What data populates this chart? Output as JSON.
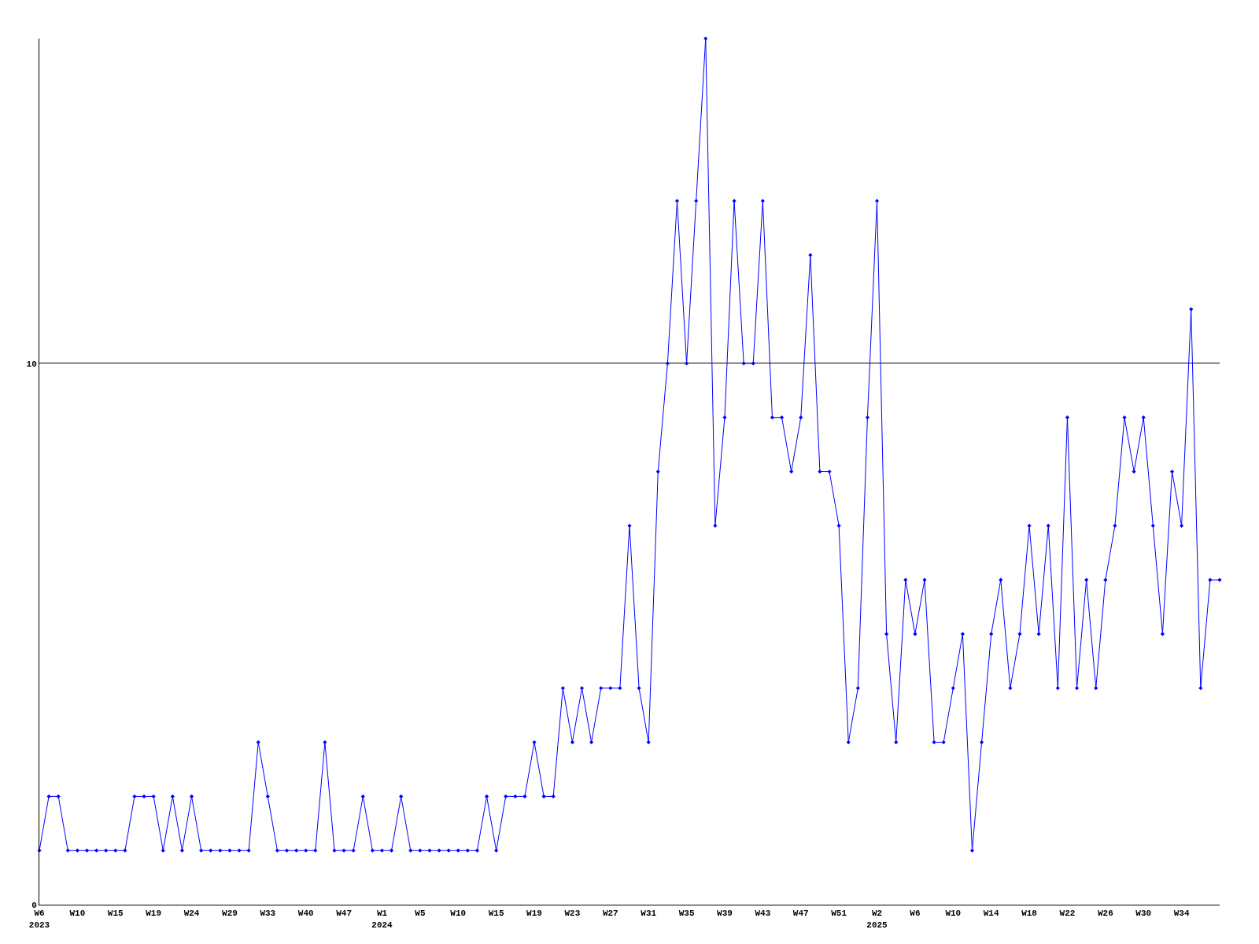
{
  "chart_data": {
    "type": "line",
    "categories": [
      "W6\n2023",
      null,
      null,
      null,
      "W10",
      null,
      null,
      null,
      "W15",
      null,
      null,
      null,
      "W19",
      null,
      null,
      null,
      "W24",
      null,
      null,
      null,
      "W29",
      null,
      null,
      null,
      "W33",
      null,
      null,
      null,
      "W40",
      null,
      null,
      null,
      "W47",
      null,
      null,
      null,
      "W1\n2024",
      null,
      null,
      null,
      "W5",
      null,
      null,
      null,
      "W10",
      null,
      null,
      null,
      "W15",
      null,
      null,
      null,
      "W19",
      null,
      null,
      null,
      "W23",
      null,
      null,
      null,
      "W27",
      null,
      null,
      null,
      "W31",
      null,
      null,
      null,
      "W35",
      null,
      null,
      null,
      "W39",
      null,
      null,
      null,
      "W43",
      null,
      null,
      null,
      "W47",
      null,
      null,
      null,
      "W51",
      null,
      null,
      null,
      "W2\n2025",
      null,
      null,
      null,
      "W6",
      null,
      null,
      null,
      "W10",
      null,
      null,
      null,
      "W14",
      null,
      null,
      null,
      "W18",
      null,
      null,
      null,
      "W22",
      null,
      null,
      null,
      "W26",
      null,
      null,
      null,
      "W30",
      null,
      null,
      null,
      "W34",
      null,
      null,
      null,
      null
    ],
    "series": [
      {
        "color": "#0000ff",
        "values": [
          1,
          2,
          2,
          1,
          1,
          1,
          1,
          1,
          1,
          1,
          2,
          2,
          2,
          1,
          2,
          1,
          2,
          1,
          1,
          1,
          1,
          1,
          1,
          3,
          2,
          1,
          1,
          1,
          1,
          1,
          3,
          1,
          1,
          1,
          2,
          1,
          1,
          1,
          2,
          1,
          1,
          1,
          1,
          1,
          1,
          1,
          1,
          2,
          1,
          2,
          2,
          2,
          3,
          2,
          2,
          4,
          3,
          4,
          3,
          4,
          4,
          4,
          7,
          4,
          3,
          8,
          10,
          13,
          10,
          13,
          16,
          7,
          9,
          13,
          10,
          10,
          13,
          9,
          9,
          8,
          9,
          12,
          8,
          8,
          7,
          3,
          4,
          9,
          13,
          5,
          3,
          6,
          5,
          6,
          3,
          3,
          4,
          5,
          1,
          3,
          5,
          6,
          4,
          5,
          7,
          5,
          7,
          4,
          9,
          4,
          6,
          4,
          6,
          7,
          9,
          8,
          9,
          7,
          5,
          8,
          7,
          11,
          4,
          6,
          6
        ]
      }
    ],
    "ylim": [
      0,
      16
    ],
    "yticks": [
      0,
      10
    ],
    "grid": "y",
    "marker": "diamond",
    "line_style": "solid"
  }
}
